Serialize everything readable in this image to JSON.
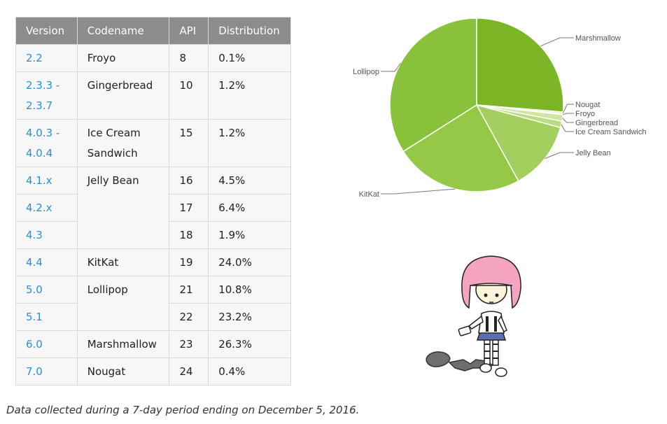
{
  "table": {
    "headers": [
      "Version",
      "Codename",
      "API",
      "Distribution"
    ],
    "rows": [
      {
        "version": "2.2",
        "codename": "Froyo",
        "api": "8",
        "distribution": "0.1%"
      },
      {
        "version": "2.3.3 -\n2.3.7",
        "codename": "Gingerbread",
        "api": "10",
        "distribution": "1.2%"
      },
      {
        "version": "4.0.3 -\n4.0.4",
        "codename": "Ice Cream\nSandwich",
        "api": "15",
        "distribution": "1.2%"
      },
      {
        "version": "4.1.x",
        "codename": "Jelly Bean",
        "api": "16",
        "distribution": "4.5%"
      },
      {
        "version": "4.2.x",
        "codename": "",
        "api": "17",
        "distribution": "6.4%"
      },
      {
        "version": "4.3",
        "codename": "",
        "api": "18",
        "distribution": "1.9%"
      },
      {
        "version": "4.4",
        "codename": "KitKat",
        "api": "19",
        "distribution": "24.0%"
      },
      {
        "version": "5.0",
        "codename": "Lollipop",
        "api": "21",
        "distribution": "10.8%"
      },
      {
        "version": "5.1",
        "codename": "",
        "api": "22",
        "distribution": "23.2%"
      },
      {
        "version": "6.0",
        "codename": "Marshmallow",
        "api": "23",
        "distribution": "26.3%"
      },
      {
        "version": "7.0",
        "codename": "Nougat",
        "api": "24",
        "distribution": "0.4%"
      }
    ]
  },
  "footnote": "Data collected during a 7-day period ending on December 5, 2016.",
  "chart_data": {
    "type": "pie",
    "title": "",
    "start_angle_deg": -90,
    "slices": [
      {
        "label": "Marshmallow",
        "value": 26.3,
        "color": "#7cb526"
      },
      {
        "label": "Nougat",
        "value": 0.4,
        "color": "#e7f1cc"
      },
      {
        "label": "Froyo",
        "value": 0.1,
        "color": "#dfeec0"
      },
      {
        "label": "Gingerbread",
        "value": 1.2,
        "color": "#cfe5a0"
      },
      {
        "label": "Ice Cream Sandwich",
        "value": 1.2,
        "color": "#bcdb83"
      },
      {
        "label": "Jelly Bean",
        "value": 12.8,
        "color": "#a3cf5e"
      },
      {
        "label": "KitKat",
        "value": 24.0,
        "color": "#94c846"
      },
      {
        "label": "Lollipop",
        "value": 34.0,
        "color": "#88c13a"
      }
    ]
  },
  "colors": {
    "header_bg": "#8c8c8c",
    "link_blue": "#2a8fd6",
    "table_bg": "#f7f7f7",
    "border": "#d9d9d9"
  },
  "mascot": {
    "description_icon": "android-girl-mascot-illustration"
  }
}
